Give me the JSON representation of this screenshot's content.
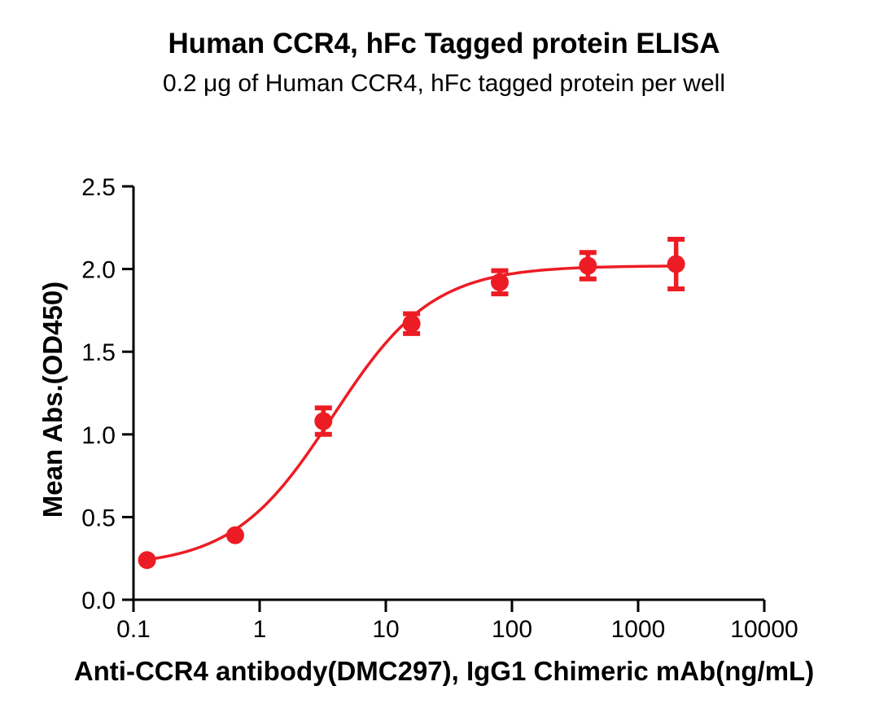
{
  "chart": {
    "title": "Human CCR4, hFc Tagged protein ELISA",
    "subtitle": "0.2 μg of Human CCR4, hFc tagged protein per well",
    "xlabel": "Anti-CCR4 antibody(DMC297), IgG1 Chimeric mAb(ng/mL)",
    "ylabel": "Mean Abs.(OD450)"
  },
  "chart_data": {
    "type": "scatter",
    "title": "Human CCR4, hFc Tagged protein ELISA",
    "subtitle": "0.2 μg of Human CCR4, hFc tagged protein per well",
    "xlabel": "Anti-CCR4 antibody(DMC297), IgG1 Chimeric mAb(ng/mL)",
    "ylabel": "Mean Abs.(OD450)",
    "x_scale": "log10",
    "xlim": [
      0.1,
      10000
    ],
    "ylim": [
      0.0,
      2.5
    ],
    "x_ticks": [
      0.1,
      1,
      10,
      100,
      1000,
      10000
    ],
    "x_tick_labels": [
      "0.1",
      "1",
      "10",
      "100",
      "1000",
      "10000"
    ],
    "y_ticks": [
      0.0,
      0.5,
      1.0,
      1.5,
      2.0,
      2.5
    ],
    "y_tick_labels": [
      "0.0",
      "0.5",
      "1.0",
      "1.5",
      "2.0",
      "2.5"
    ],
    "grid": false,
    "legend": false,
    "series": [
      {
        "name": "Anti-CCR4 antibody (DMC297)",
        "x": [
          0.128,
          0.64,
          3.2,
          16,
          80,
          400,
          2000
        ],
        "y": [
          0.24,
          0.39,
          1.08,
          1.67,
          1.92,
          2.02,
          2.03
        ],
        "y_err": [
          0,
          0,
          0.08,
          0.06,
          0.07,
          0.08,
          0.15
        ],
        "color": "#ED1C24"
      }
    ],
    "fit_curve": {
      "model": "4PL",
      "bottom": 0.2,
      "top": 2.02,
      "ec50": 3.8,
      "hill": 1.1,
      "x_range": [
        0.128,
        2000
      ],
      "color": "#ED1C24"
    },
    "axis_color": "#000000"
  }
}
